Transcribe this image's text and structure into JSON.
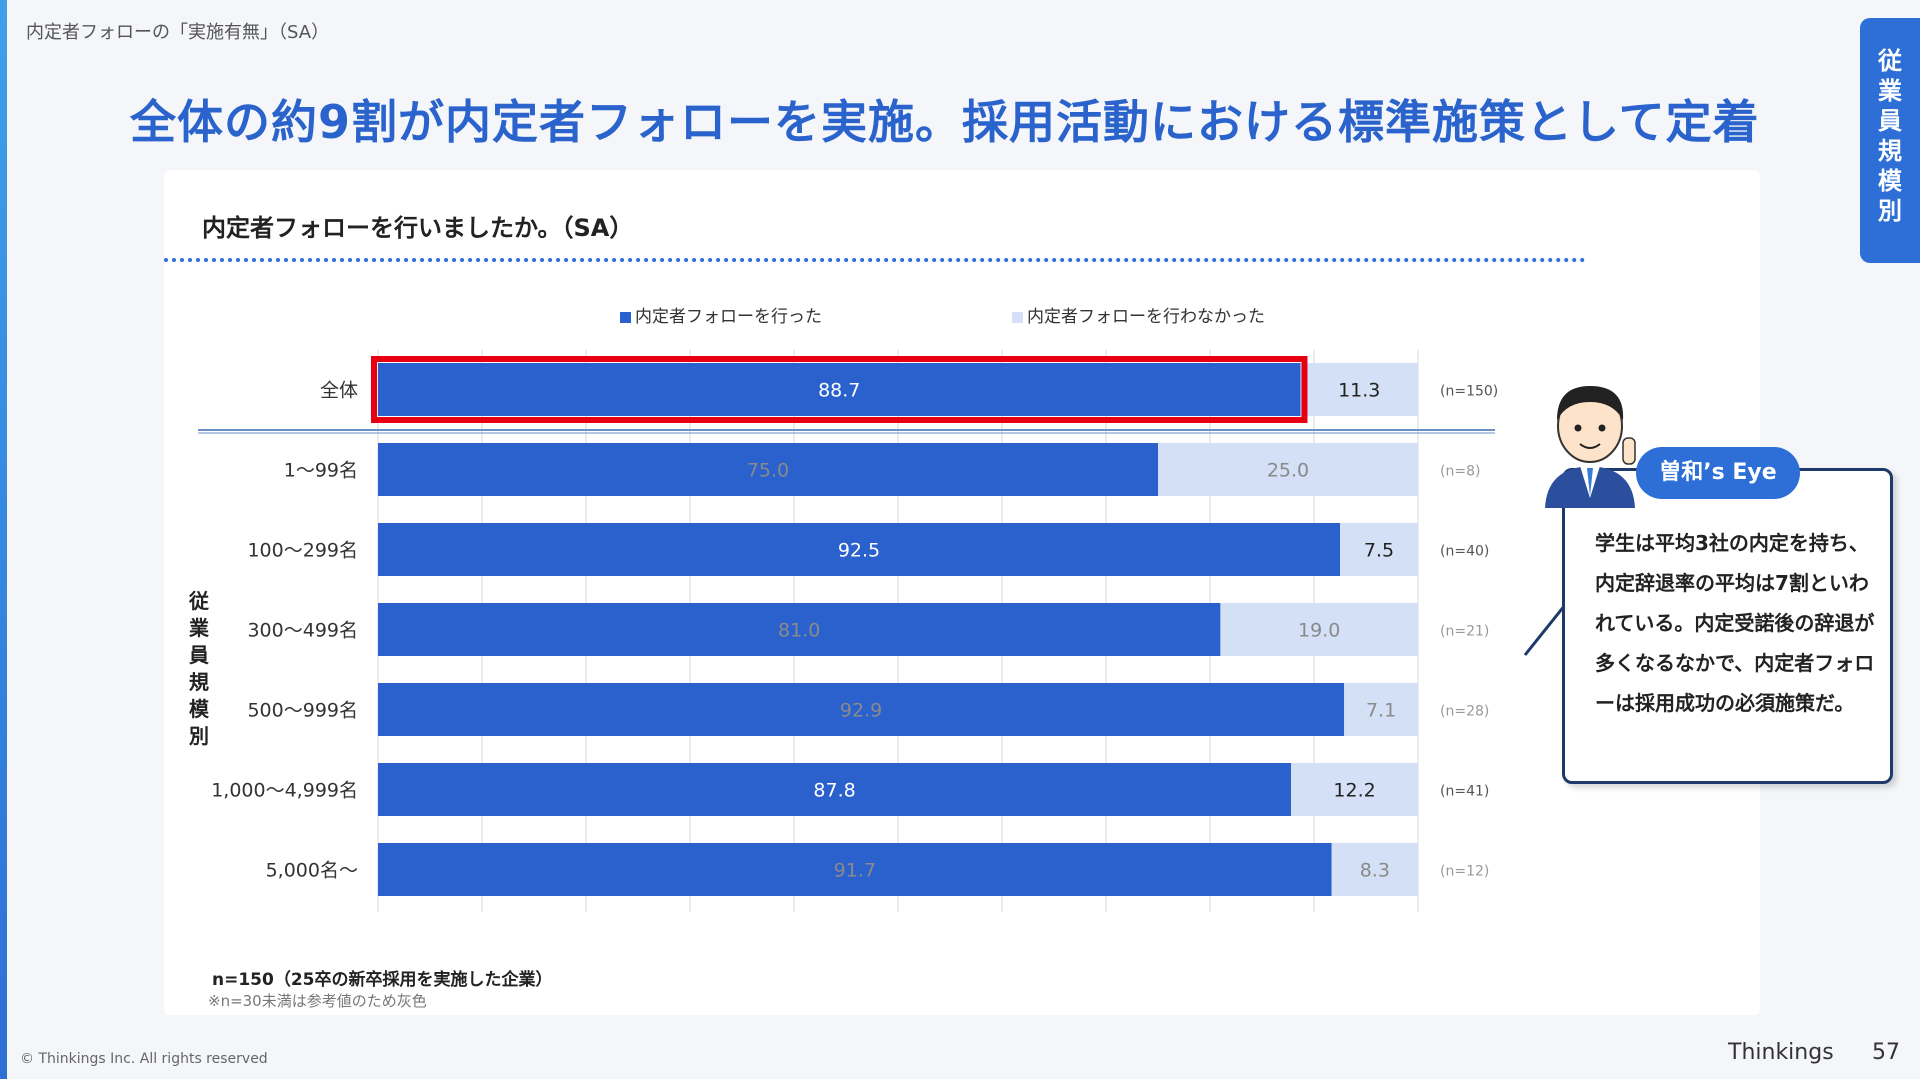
{
  "header": {
    "breadcrumb": "内定者フォローの「実施有無」（SA）",
    "headline": "全体の約9割が内定者フォローを実施。採用活動における標準施策として定着",
    "side_tab": "従業員規模別"
  },
  "panel": {
    "title": "内定者フォローを行いましたか。（SA）",
    "y_group_label": "従業員規模別",
    "note_sample": "n=150（25卒の新卒採用を実施した企業）",
    "note_gray": "※n=30未満は参考値のため灰色"
  },
  "chart_data": {
    "type": "bar",
    "orientation": "horizontal",
    "stacked": true,
    "xlim": [
      0,
      100
    ],
    "categories": [
      "全体",
      "1〜99名",
      "100〜299名",
      "300〜499名",
      "500〜999名",
      "1,000〜4,999名",
      "5,000名〜"
    ],
    "series": [
      {
        "name": "内定者フォローを行った",
        "color": "#2b61cc",
        "values": [
          88.7,
          75.0,
          92.5,
          81.0,
          92.9,
          87.8,
          91.7
        ],
        "labels": [
          "88.7",
          "75.0",
          "92.5",
          "81.0",
          "92.9",
          "87.8",
          "91.7"
        ]
      },
      {
        "name": "内定者フォローを行わなかった",
        "color": "#d3e0f5",
        "values": [
          11.3,
          25.0,
          7.5,
          19.0,
          7.1,
          12.2,
          8.3
        ],
        "labels": [
          "11.3",
          "25.0",
          "7.5",
          "19.0",
          "7.1",
          "12.2",
          "8.3"
        ]
      }
    ],
    "n_labels": [
      "(n=150)",
      "(n=8)",
      "(n=40)",
      "(n=21)",
      "(n=28)",
      "(n=41)",
      "(n=12)"
    ],
    "reference_rows": [
      false,
      true,
      false,
      true,
      true,
      false,
      true
    ],
    "highlight_row": 0,
    "highlight_color": "#e60012",
    "grid": true,
    "legend_position": "top"
  },
  "callout": {
    "badge": "曽和’s Eye",
    "text": "学生は平均3社の内定を持ち、内定辞退率の平均は7割といわれている。内定受諾後の辞退が多くなるなかで、内定者フォローは採用成功の必須施策だ。"
  },
  "footer": {
    "copyright": "© Thinkings Inc. All rights reserved",
    "brand": "Thinkings",
    "page": "57"
  }
}
